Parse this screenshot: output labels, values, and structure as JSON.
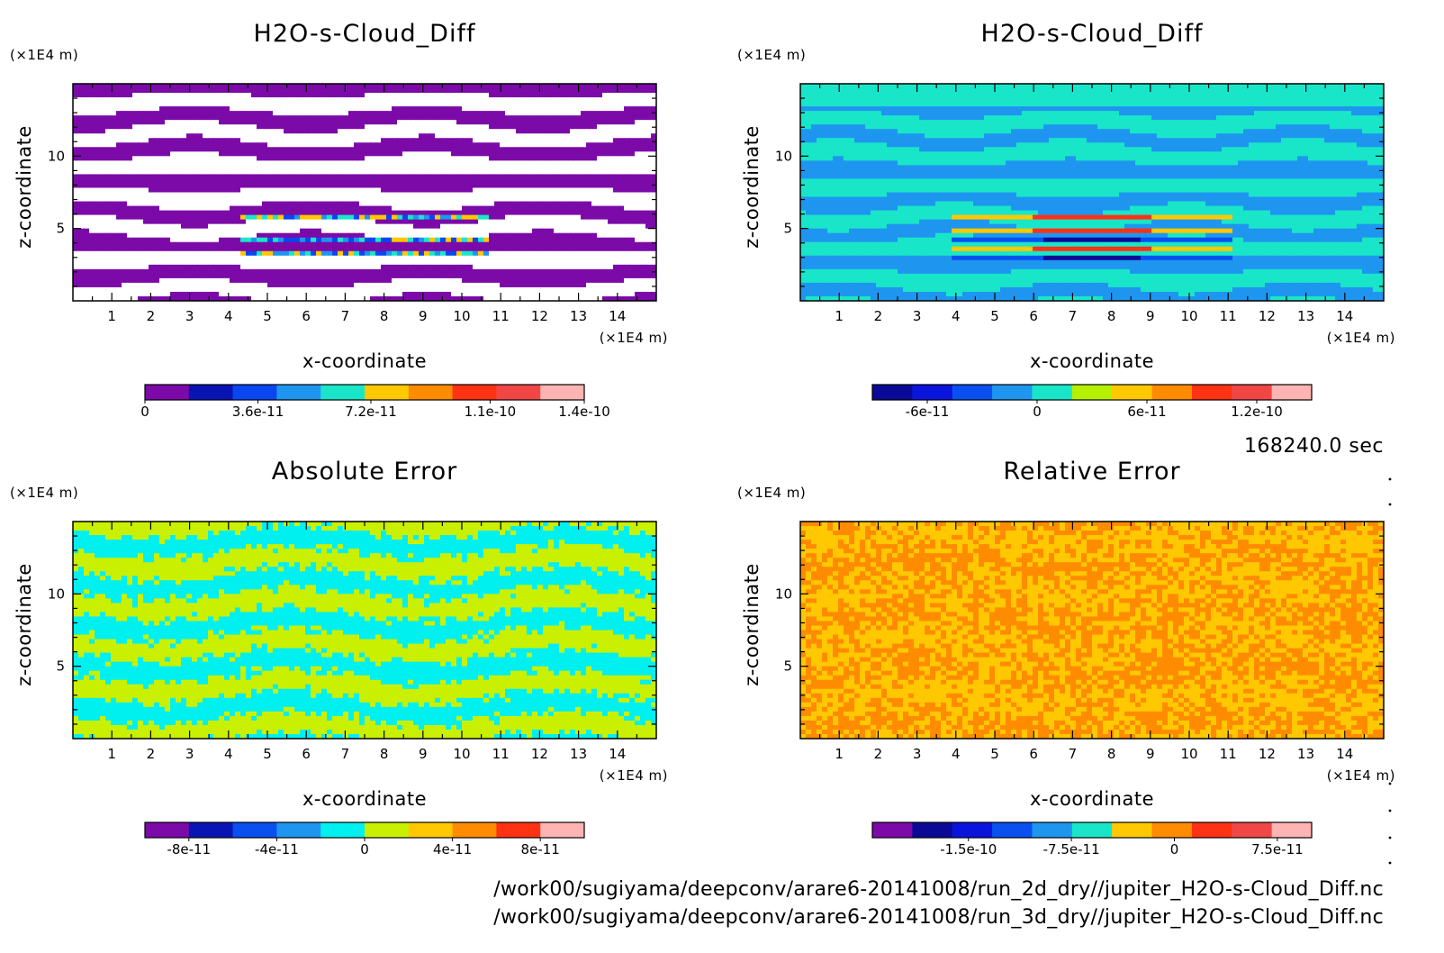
{
  "figure": {
    "time_label": "168240.0 sec",
    "file_paths": [
      "/work00/sugiyama/deepconv/arare6-20141008/run_2d_dry//jupiter_H2O-s-Cloud_Diff.nc",
      "/work00/sugiyama/deepconv/arare6-20141008/run_3d_dry//jupiter_H2O-s-Cloud_Diff.nc"
    ]
  },
  "chart_data": [
    {
      "type": "heatmap",
      "title": "H2O-s-Cloud_Diff",
      "xlabel": "x-coordinate",
      "ylabel": "z-coordinate",
      "x_unit": "(×1E4 m)",
      "y_unit": "(×1E4 m)",
      "xlim": [
        0,
        15
      ],
      "ylim": [
        0,
        15
      ],
      "x_ticks": [
        "1",
        "2",
        "3",
        "4",
        "5",
        "6",
        "7",
        "8",
        "9",
        "10",
        "11",
        "12",
        "13",
        "14"
      ],
      "y_ticks": [
        "5",
        "10"
      ],
      "pattern": "bands",
      "colorbar": {
        "colors": [
          "#7b0aa8",
          "#0a14b4",
          "#0a46f0",
          "#1e96f0",
          "#19e6c8",
          "#ffc800",
          "#ff8c00",
          "#ff3214",
          "#f04646",
          "#ffb4b4"
        ],
        "tick_labels": [
          "0",
          "3.6e-11",
          "7.2e-11",
          "1.1e-10",
          "1.4e-10"
        ],
        "range": [
          0,
          1.4e-10
        ]
      }
    },
    {
      "type": "heatmap",
      "title": "H2O-s-Cloud_Diff",
      "xlabel": "x-coordinate",
      "ylabel": "z-coordinate",
      "x_unit": "(×1E4 m)",
      "y_unit": "(×1E4 m)",
      "xlim": [
        0,
        15
      ],
      "ylim": [
        0,
        15
      ],
      "x_ticks": [
        "1",
        "2",
        "3",
        "4",
        "5",
        "6",
        "7",
        "8",
        "9",
        "10",
        "11",
        "12",
        "13",
        "14"
      ],
      "y_ticks": [
        "5",
        "10"
      ],
      "pattern": "bands",
      "colorbar": {
        "colors": [
          "#0a0a96",
          "#0a14dc",
          "#0a50f0",
          "#1e96f0",
          "#19e6c8",
          "#b4f000",
          "#ffc800",
          "#ff8c00",
          "#ff3214",
          "#f04646",
          "#ffb4b4"
        ],
        "tick_labels": [
          "-6e-11",
          "0",
          "6e-11",
          "1.2e-10"
        ],
        "range": [
          -9e-11,
          1.5e-10
        ]
      }
    },
    {
      "type": "heatmap",
      "title": "Absolute Error",
      "xlabel": "x-coordinate",
      "ylabel": "z-coordinate",
      "x_unit": "(×1E4 m)",
      "y_unit": "(×1E4 m)",
      "xlim": [
        0,
        15
      ],
      "ylim": [
        0,
        15
      ],
      "x_ticks": [
        "1",
        "2",
        "3",
        "4",
        "5",
        "6",
        "7",
        "8",
        "9",
        "10",
        "11",
        "12",
        "13",
        "14"
      ],
      "y_ticks": [
        "5",
        "10"
      ],
      "pattern": "noise",
      "colorbar": {
        "colors": [
          "#7b0aa8",
          "#0a14b4",
          "#0a50f0",
          "#1e96f0",
          "#00f0f0",
          "#c8f000",
          "#ffc800",
          "#ff8c00",
          "#ff3214",
          "#ffb4b4"
        ],
        "tick_labels": [
          "-8e-11",
          "-4e-11",
          "0",
          "4e-11",
          "8e-11"
        ],
        "range": [
          -1e-10,
          1e-10
        ]
      }
    },
    {
      "type": "heatmap",
      "title": "Relative Error",
      "xlabel": "x-coordinate",
      "ylabel": "z-coordinate",
      "x_unit": "(×1E4 m)",
      "y_unit": "(×1E4 m)",
      "xlim": [
        0,
        15
      ],
      "ylim": [
        0,
        15
      ],
      "x_ticks": [
        "1",
        "2",
        "3",
        "4",
        "5",
        "6",
        "7",
        "8",
        "9",
        "10",
        "11",
        "12",
        "13",
        "14"
      ],
      "y_ticks": [
        "5",
        "10"
      ],
      "pattern": "noise",
      "colorbar": {
        "colors": [
          "#7b0aa8",
          "#0a0a96",
          "#0a14dc",
          "#0a50f0",
          "#1e96f0",
          "#19e6c8",
          "#ffc800",
          "#ff8c00",
          "#ff3214",
          "#f04646",
          "#ffb4b4"
        ],
        "tick_labels": [
          "-1.5e-10",
          "-7.5e-11",
          "0",
          "7.5e-11"
        ],
        "range": [
          -2.2e-10,
          1e-10
        ]
      }
    }
  ]
}
